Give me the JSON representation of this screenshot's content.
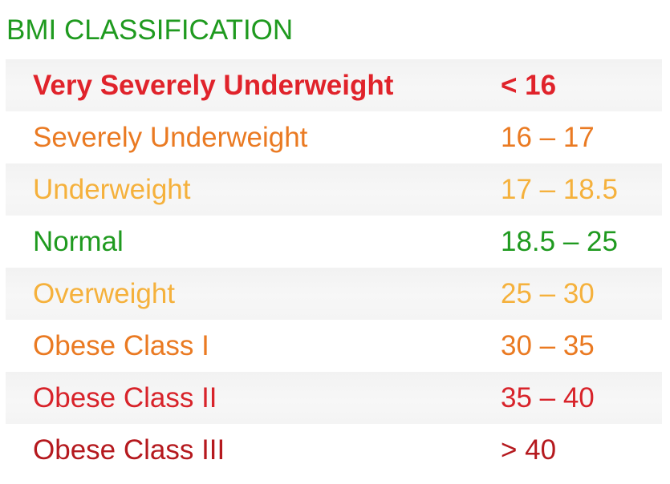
{
  "title": "BMI CLASSIFICATION",
  "title_color": "#1f9a1f",
  "rows": [
    {
      "category": "Very Severely Underweight",
      "range": "< 16",
      "color": "#e0232b",
      "bold": true,
      "shaded": true
    },
    {
      "category": "Severely Underweight",
      "range": "16 – 17",
      "color": "#ea7a22",
      "bold": false,
      "shaded": false
    },
    {
      "category": "Underweight",
      "range": "17 – 18.5",
      "color": "#f5b13c",
      "bold": false,
      "shaded": true
    },
    {
      "category": "Normal",
      "range": "18.5 – 25",
      "color": "#1f9a1f",
      "bold": false,
      "shaded": false
    },
    {
      "category": "Overweight",
      "range": "25 – 30",
      "color": "#f5b13c",
      "bold": false,
      "shaded": true
    },
    {
      "category": "Obese Class I",
      "range": "30 – 35",
      "color": "#ea7a22",
      "bold": false,
      "shaded": false
    },
    {
      "category": "Obese Class II",
      "range": "35 – 40",
      "color": "#d8232a",
      "bold": false,
      "shaded": true
    },
    {
      "category": "Obese Class III",
      "range": "> 40",
      "color": "#b5191e",
      "bold": false,
      "shaded": false
    }
  ]
}
